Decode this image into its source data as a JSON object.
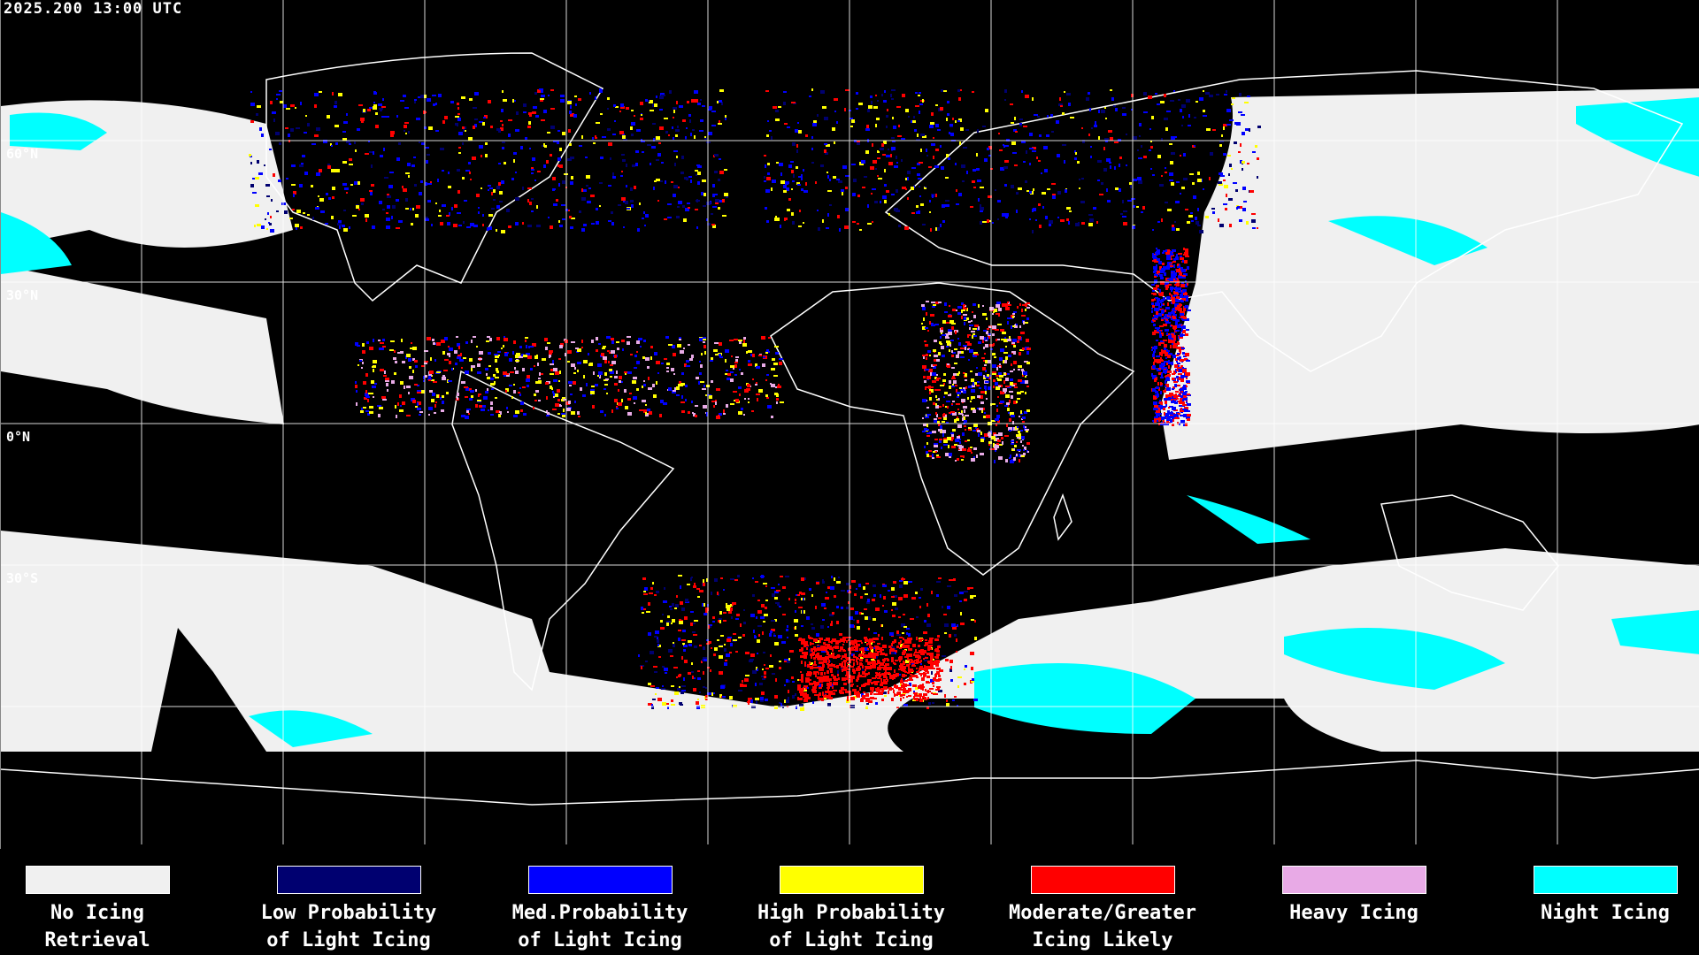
{
  "timestamp": "2025.200 13:00 UTC",
  "map": {
    "latitude_labels": [
      "60°N",
      "30°N",
      "0°N",
      "30°S"
    ],
    "grid_spacing_degrees": 30,
    "background": "#000000",
    "coastline_color": "#ffffff"
  },
  "legend": [
    {
      "line1": "No Icing",
      "line2": "Retrieval",
      "color": "#f0f0f0"
    },
    {
      "line1": "Low Probability",
      "line2": "of Light Icing",
      "color": "#000070"
    },
    {
      "line1": "Med.Probability",
      "line2": "of Light Icing",
      "color": "#0000ff"
    },
    {
      "line1": "High Probability",
      "line2": "of Light Icing",
      "color": "#ffff00"
    },
    {
      "line1": "Moderate/Greater",
      "line2": "Icing Likely",
      "color": "#ff0000"
    },
    {
      "line1": "Heavy Icing",
      "line2": "",
      "color": "#e8aae6"
    },
    {
      "line1": "Night Icing",
      "line2": "",
      "color": "#00ffff"
    }
  ]
}
